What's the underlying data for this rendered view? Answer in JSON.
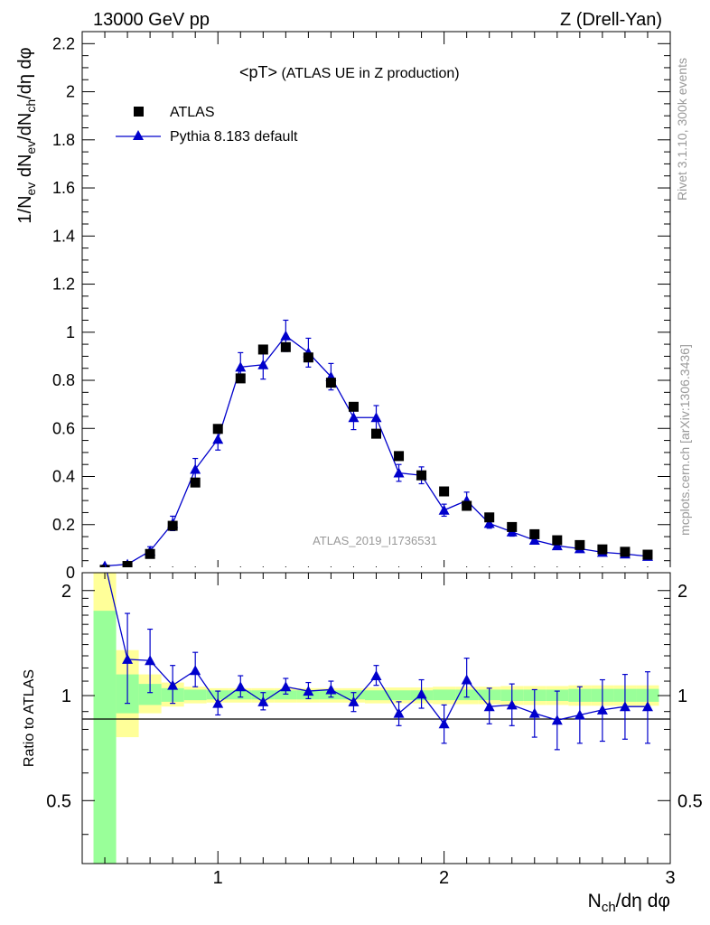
{
  "header": {
    "left": "13000 GeV pp",
    "right": "Z (Drell-Yan)"
  },
  "side_labels": {
    "rivet": "Rivet 3.1.10,  300k events",
    "mcplots": "mcplots.cern.ch [arXiv:1306.3436]"
  },
  "analysis_label": "ATLAS_2019_I1736531",
  "chart_data": [
    {
      "type": "scatter",
      "title_main": "<pT>",
      "title_sub": " (ATLAS UE in Z production)",
      "ylabel": "1/N_ev dN_ev/dN_ch/dη dφ",
      "ylim": [
        0,
        2.25
      ],
      "xlim": [
        0.4,
        3.0
      ],
      "y_ticks": [
        "0",
        "0.2",
        "0.4",
        "0.6",
        "0.8",
        "1",
        "1.2",
        "1.4",
        "1.6",
        "1.8",
        "2",
        "2.2"
      ],
      "legend": {
        "placement": "top-left",
        "entries": [
          "ATLAS",
          "Pythia 8.183 default"
        ]
      },
      "colors": {
        "data": "#000000",
        "mc": "#0000cc"
      },
      "series": [
        {
          "name": "ATLAS",
          "x": [
            0.5,
            0.6,
            0.7,
            0.8,
            0.9,
            1.0,
            1.1,
            1.2,
            1.3,
            1.4,
            1.5,
            1.6,
            1.7,
            1.8,
            1.9,
            2.0,
            2.1,
            2.2,
            2.3,
            2.4,
            2.5,
            2.6,
            2.7,
            2.8,
            2.9
          ],
          "y": [
            0.012,
            0.028,
            0.078,
            0.195,
            0.375,
            0.598,
            0.808,
            0.928,
            0.938,
            0.895,
            0.79,
            0.69,
            0.578,
            0.485,
            0.405,
            0.338,
            0.278,
            0.23,
            0.19,
            0.16,
            0.135,
            0.115,
            0.097,
            0.087,
            0.075
          ]
        },
        {
          "name": "Pythia 8.183 default",
          "x": [
            0.5,
            0.6,
            0.7,
            0.8,
            0.9,
            1.0,
            1.1,
            1.2,
            1.3,
            1.4,
            1.5,
            1.6,
            1.7,
            1.8,
            1.9,
            2.0,
            2.1,
            2.2,
            2.3,
            2.4,
            2.5,
            2.6,
            2.7,
            2.8,
            2.9
          ],
          "y": [
            0.028,
            0.035,
            0.09,
            0.205,
            0.43,
            0.555,
            0.855,
            0.865,
            0.985,
            0.915,
            0.815,
            0.645,
            0.645,
            0.415,
            0.405,
            0.26,
            0.3,
            0.205,
            0.17,
            0.135,
            0.112,
            0.1,
            0.085,
            0.078,
            0.068
          ],
          "yerr": [
            0.004,
            0.008,
            0.018,
            0.03,
            0.045,
            0.045,
            0.06,
            0.06,
            0.065,
            0.06,
            0.055,
            0.05,
            0.05,
            0.035,
            0.035,
            0.025,
            0.035,
            0.02,
            0.018,
            0.015,
            0.012,
            0.012,
            0.01,
            0.01,
            0.01
          ]
        }
      ]
    },
    {
      "type": "scatter",
      "ylabel": "Ratio to ATLAS",
      "xlabel": "N_ch/dη dφ",
      "ylim": [
        0.33,
        2.25
      ],
      "yscale": "log",
      "xlim": [
        0.4,
        3.0
      ],
      "y_ticks": [
        "0.5",
        "1",
        "2"
      ],
      "x_ticks": [
        "1",
        "2",
        "3"
      ],
      "series": [
        {
          "name": "Pythia 8.183 default / ATLAS",
          "x": [
            0.5,
            0.6,
            0.7,
            0.8,
            0.9,
            1.0,
            1.1,
            1.2,
            1.3,
            1.4,
            1.5,
            1.6,
            1.7,
            1.8,
            1.9,
            2.0,
            2.1,
            2.2,
            2.3,
            2.4,
            2.5,
            2.6,
            2.7,
            2.8,
            2.9
          ],
          "y": [
            2.4,
            1.27,
            1.26,
            1.07,
            1.18,
            0.95,
            1.06,
            0.96,
            1.06,
            1.03,
            1.04,
            0.96,
            1.14,
            0.89,
            1.01,
            0.83,
            1.11,
            0.93,
            0.94,
            0.89,
            0.85,
            0.88,
            0.91,
            0.93,
            0.93
          ],
          "yerr_low": [
            0.5,
            0.32,
            0.24,
            0.12,
            0.12,
            0.07,
            0.07,
            0.05,
            0.05,
            0.05,
            0.05,
            0.06,
            0.07,
            0.07,
            0.09,
            0.1,
            0.12,
            0.1,
            0.12,
            0.13,
            0.15,
            0.15,
            0.17,
            0.18,
            0.2
          ],
          "yerr_high": [
            0.5,
            0.45,
            0.29,
            0.15,
            0.15,
            0.08,
            0.08,
            0.06,
            0.06,
            0.06,
            0.06,
            0.06,
            0.08,
            0.07,
            0.1,
            0.11,
            0.17,
            0.12,
            0.14,
            0.15,
            0.18,
            0.18,
            0.2,
            0.22,
            0.24
          ]
        }
      ],
      "bands": {
        "yellow_low": [
          0.33,
          0.76,
          0.89,
          0.93,
          0.95,
          0.955,
          0.955,
          0.955,
          0.955,
          0.955,
          0.955,
          0.955,
          0.95,
          0.95,
          0.95,
          0.945,
          0.945,
          0.945,
          0.94,
          0.94,
          0.94,
          0.935,
          0.935,
          0.935,
          0.935
        ],
        "yellow_high": [
          2.25,
          1.35,
          1.15,
          1.09,
          1.06,
          1.05,
          1.05,
          1.05,
          1.05,
          1.05,
          1.05,
          1.05,
          1.055,
          1.055,
          1.055,
          1.06,
          1.06,
          1.06,
          1.065,
          1.065,
          1.065,
          1.07,
          1.07,
          1.07,
          1.07
        ],
        "green_low": [
          0.33,
          0.89,
          0.94,
          0.96,
          0.97,
          0.975,
          0.975,
          0.975,
          0.975,
          0.975,
          0.975,
          0.975,
          0.97,
          0.97,
          0.97,
          0.97,
          0.97,
          0.97,
          0.965,
          0.965,
          0.965,
          0.96,
          0.96,
          0.96,
          0.96
        ],
        "green_high": [
          1.75,
          1.15,
          1.08,
          1.05,
          1.04,
          1.035,
          1.035,
          1.035,
          1.035,
          1.035,
          1.035,
          1.035,
          1.035,
          1.035,
          1.035,
          1.04,
          1.04,
          1.04,
          1.04,
          1.04,
          1.04,
          1.045,
          1.045,
          1.045,
          1.045
        ]
      }
    }
  ]
}
